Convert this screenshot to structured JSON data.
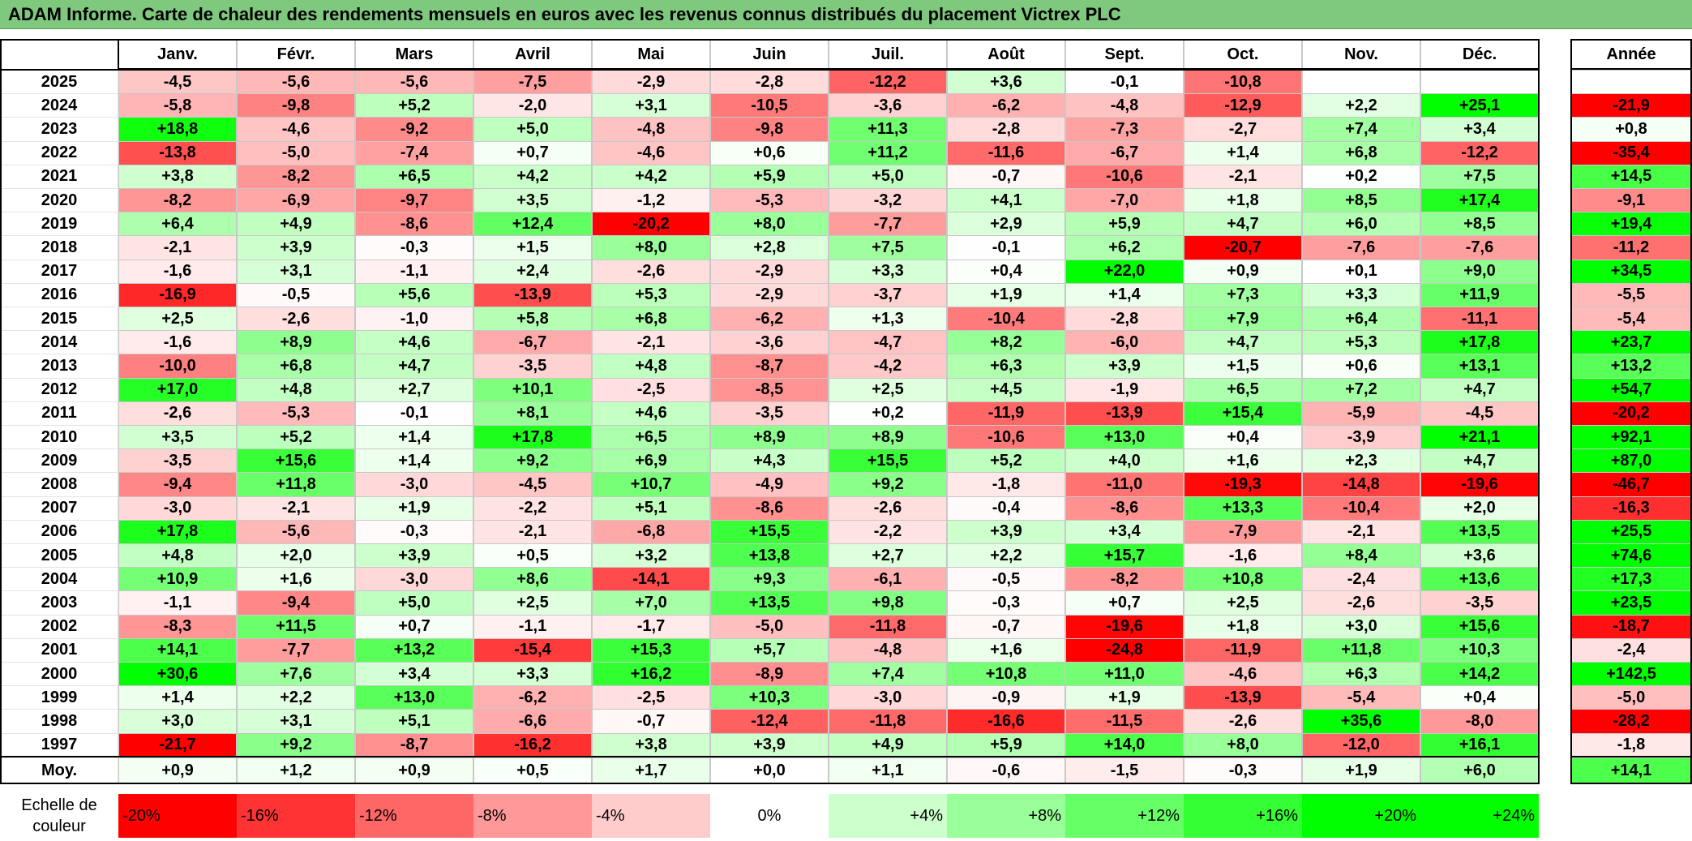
{
  "title": "ADAM Informe. Carte de chaleur des rendements mensuels en euros avec les revenus connus distribués du placement Victrex PLC",
  "chart_data": {
    "type": "heatmap",
    "title": "ADAM Informe. Carte de chaleur des rendements mensuels en euros avec les revenus connus distribués du placement Victrex PLC",
    "columns": [
      "Janv.",
      "Févr.",
      "Mars",
      "Avril",
      "Mai",
      "Juin",
      "Juil.",
      "Août",
      "Sept.",
      "Oct.",
      "Nov.",
      "Déc."
    ],
    "year_column_label": "Année",
    "average_row_label": "Moy.",
    "rows": [
      {
        "year": "2025",
        "values": [
          "-4,5",
          "-5,6",
          "-5,6",
          "-7,5",
          "-2,9",
          "-2,8",
          "-12,2",
          "+3,6",
          "-0,1",
          "-10,8",
          "",
          ""
        ],
        "annual": ""
      },
      {
        "year": "2024",
        "values": [
          "-5,8",
          "-9,8",
          "+5,2",
          "-2,0",
          "+3,1",
          "-10,5",
          "-3,6",
          "-6,2",
          "-4,8",
          "-12,9",
          "+2,2",
          "+25,1"
        ],
        "annual": "-21,9"
      },
      {
        "year": "2023",
        "values": [
          "+18,8",
          "-4,6",
          "-9,2",
          "+5,0",
          "-4,8",
          "-9,8",
          "+11,3",
          "-2,8",
          "-7,3",
          "-2,7",
          "+7,4",
          "+3,4"
        ],
        "annual": "+0,8"
      },
      {
        "year": "2022",
        "values": [
          "-13,8",
          "-5,0",
          "-7,4",
          "+0,7",
          "-4,6",
          "+0,6",
          "+11,2",
          "-11,6",
          "-6,7",
          "+1,4",
          "+6,8",
          "-12,2"
        ],
        "annual": "-35,4"
      },
      {
        "year": "2021",
        "values": [
          "+3,8",
          "-8,2",
          "+6,5",
          "+4,2",
          "+4,2",
          "+5,9",
          "+5,0",
          "-0,7",
          "-10,6",
          "-2,1",
          "+0,2",
          "+7,5"
        ],
        "annual": "+14,5"
      },
      {
        "year": "2020",
        "values": [
          "-8,2",
          "-6,9",
          "-9,7",
          "+3,5",
          "-1,2",
          "-5,3",
          "-3,2",
          "+4,1",
          "-7,0",
          "+1,8",
          "+8,5",
          "+17,4"
        ],
        "annual": "-9,1"
      },
      {
        "year": "2019",
        "values": [
          "+6,4",
          "+4,9",
          "-8,6",
          "+12,4",
          "-20,2",
          "+8,0",
          "-7,7",
          "+2,9",
          "+5,9",
          "+4,7",
          "+6,0",
          "+8,5"
        ],
        "annual": "+19,4"
      },
      {
        "year": "2018",
        "values": [
          "-2,1",
          "+3,9",
          "-0,3",
          "+1,5",
          "+8,0",
          "+2,8",
          "+7,5",
          "-0,1",
          "+6,2",
          "-20,7",
          "-7,6",
          "-7,6"
        ],
        "annual": "-11,2"
      },
      {
        "year": "2017",
        "values": [
          "-1,6",
          "+3,1",
          "-1,1",
          "+2,4",
          "-2,6",
          "-2,9",
          "+3,3",
          "+0,4",
          "+22,0",
          "+0,9",
          "+0,1",
          "+9,0"
        ],
        "annual": "+34,5"
      },
      {
        "year": "2016",
        "values": [
          "-16,9",
          "-0,5",
          "+5,6",
          "-13,9",
          "+5,3",
          "-2,9",
          "-3,7",
          "+1,9",
          "+1,4",
          "+7,3",
          "+3,3",
          "+11,9"
        ],
        "annual": "-5,5"
      },
      {
        "year": "2015",
        "values": [
          "+2,5",
          "-2,6",
          "-1,0",
          "+5,8",
          "+6,8",
          "-6,2",
          "+1,3",
          "-10,4",
          "-2,8",
          "+7,9",
          "+6,4",
          "-11,1"
        ],
        "annual": "-5,4"
      },
      {
        "year": "2014",
        "values": [
          "-1,6",
          "+8,9",
          "+4,6",
          "-6,7",
          "-2,1",
          "-3,6",
          "-4,7",
          "+8,2",
          "-6,0",
          "+4,7",
          "+5,3",
          "+17,8"
        ],
        "annual": "+23,7"
      },
      {
        "year": "2013",
        "values": [
          "-10,0",
          "+6,8",
          "+4,7",
          "-3,5",
          "+4,8",
          "-8,7",
          "-4,2",
          "+6,3",
          "+3,9",
          "+1,5",
          "+0,6",
          "+13,1"
        ],
        "annual": "+13,2"
      },
      {
        "year": "2012",
        "values": [
          "+17,0",
          "+4,8",
          "+2,7",
          "+10,1",
          "-2,5",
          "-8,5",
          "+2,5",
          "+4,5",
          "-1,9",
          "+6,5",
          "+7,2",
          "+4,7"
        ],
        "annual": "+54,7"
      },
      {
        "year": "2011",
        "values": [
          "-2,6",
          "-5,3",
          "-0,1",
          "+8,1",
          "+4,6",
          "-3,5",
          "+0,2",
          "-11,9",
          "-13,9",
          "+15,4",
          "-5,9",
          "-4,5"
        ],
        "annual": "-20,2"
      },
      {
        "year": "2010",
        "values": [
          "+3,5",
          "+5,2",
          "+1,4",
          "+17,8",
          "+6,5",
          "+8,9",
          "+8,9",
          "-10,6",
          "+13,0",
          "+0,4",
          "-3,9",
          "+21,1"
        ],
        "annual": "+92,1"
      },
      {
        "year": "2009",
        "values": [
          "-3,5",
          "+15,6",
          "+1,4",
          "+9,2",
          "+6,9",
          "+4,3",
          "+15,5",
          "+5,2",
          "+4,0",
          "+1,6",
          "+2,3",
          "+4,7"
        ],
        "annual": "+87,0"
      },
      {
        "year": "2008",
        "values": [
          "-9,4",
          "+11,8",
          "-3,0",
          "-4,5",
          "+10,7",
          "-4,9",
          "+9,2",
          "-1,8",
          "-11,0",
          "-19,3",
          "-14,8",
          "-19,6"
        ],
        "annual": "-46,7"
      },
      {
        "year": "2007",
        "values": [
          "-3,0",
          "-2,1",
          "+1,9",
          "-2,2",
          "+5,1",
          "-8,6",
          "-2,6",
          "-0,4",
          "-8,6",
          "+13,3",
          "-10,4",
          "+2,0"
        ],
        "annual": "-16,3"
      },
      {
        "year": "2006",
        "values": [
          "+17,8",
          "-5,6",
          "-0,3",
          "-2,1",
          "-6,8",
          "+15,5",
          "-2,2",
          "+3,9",
          "+3,4",
          "-7,9",
          "-2,1",
          "+13,5"
        ],
        "annual": "+25,5"
      },
      {
        "year": "2005",
        "values": [
          "+4,8",
          "+2,0",
          "+3,9",
          "+0,5",
          "+3,2",
          "+13,8",
          "+2,7",
          "+2,2",
          "+15,7",
          "-1,6",
          "+8,4",
          "+3,6"
        ],
        "annual": "+74,6"
      },
      {
        "year": "2004",
        "values": [
          "+10,9",
          "+1,6",
          "-3,0",
          "+8,6",
          "-14,1",
          "+9,3",
          "-6,1",
          "-0,5",
          "-8,2",
          "+10,8",
          "-2,4",
          "+13,6"
        ],
        "annual": "+17,3"
      },
      {
        "year": "2003",
        "values": [
          "-1,1",
          "-9,4",
          "+5,0",
          "+2,5",
          "+7,0",
          "+13,5",
          "+9,8",
          "-0,3",
          "+0,7",
          "+2,5",
          "-2,6",
          "-3,5"
        ],
        "annual": "+23,5"
      },
      {
        "year": "2002",
        "values": [
          "-8,3",
          "+11,5",
          "+0,7",
          "-1,1",
          "-1,7",
          "-5,0",
          "-11,8",
          "-0,7",
          "-19,6",
          "+1,8",
          "+3,0",
          "+15,6"
        ],
        "annual": "-18,7"
      },
      {
        "year": "2001",
        "values": [
          "+14,1",
          "-7,7",
          "+13,2",
          "-15,4",
          "+15,3",
          "+5,7",
          "-4,8",
          "+1,6",
          "-24,8",
          "-11,9",
          "+11,8",
          "+10,3"
        ],
        "annual": "-2,4"
      },
      {
        "year": "2000",
        "values": [
          "+30,6",
          "+7,6",
          "+3,4",
          "+3,3",
          "+16,2",
          "-8,9",
          "+7,4",
          "+10,8",
          "+11,0",
          "-4,6",
          "+6,3",
          "+14,2"
        ],
        "annual": "+142,5"
      },
      {
        "year": "1999",
        "values": [
          "+1,4",
          "+2,2",
          "+13,0",
          "-6,2",
          "-2,5",
          "+10,3",
          "-3,0",
          "-0,9",
          "+1,9",
          "-13,9",
          "-5,4",
          "+0,4"
        ],
        "annual": "-5,0"
      },
      {
        "year": "1998",
        "values": [
          "+3,0",
          "+3,1",
          "+5,1",
          "-6,6",
          "-0,7",
          "-12,4",
          "-11,8",
          "-16,6",
          "-11,5",
          "-2,6",
          "+35,6",
          "-8,0"
        ],
        "annual": "-28,2"
      },
      {
        "year": "1997",
        "values": [
          "-21,7",
          "+9,2",
          "-8,7",
          "-16,2",
          "+3,8",
          "+3,9",
          "+4,9",
          "+5,9",
          "+14,0",
          "+8,0",
          "-12,0",
          "+16,1"
        ],
        "annual": "-1,8"
      }
    ],
    "averages": [
      "+0,9",
      "+1,2",
      "+0,9",
      "+0,5",
      "+1,7",
      "+0,0",
      "+1,1",
      "-0,6",
      "-1,5",
      "-0,3",
      "+1,9",
      "+6,0"
    ],
    "average_annual": "+14,1",
    "scale_title": "Echelle de couleur",
    "scale": [
      {
        "label": "-20%",
        "value": -20,
        "align": "left",
        "color": "#ff0000"
      },
      {
        "label": "-16%",
        "value": -16,
        "align": "left",
        "color": "#ff3333"
      },
      {
        "label": "-12%",
        "value": -12,
        "align": "left",
        "color": "#ff6666"
      },
      {
        "label": "-8%",
        "value": -8,
        "align": "left",
        "color": "#ff9999"
      },
      {
        "label": "-4%",
        "value": -4,
        "align": "left",
        "color": "#ffcccc"
      },
      {
        "label": "0%",
        "value": 0,
        "align": "center",
        "color": "#ffffff"
      },
      {
        "label": "+4%",
        "value": 4,
        "align": "right",
        "color": "#ccffcc"
      },
      {
        "label": "+8%",
        "value": 8,
        "align": "right",
        "color": "#99ff99"
      },
      {
        "label": "+12%",
        "value": 12,
        "align": "right",
        "color": "#66ff66"
      },
      {
        "label": "+16%",
        "value": 16,
        "align": "right",
        "color": "#33ff33"
      },
      {
        "label": "+20%",
        "value": 20,
        "align": "right",
        "color": "#00ff00"
      },
      {
        "label": "+24%",
        "value": 24,
        "align": "right",
        "color": "#00ff00"
      }
    ]
  }
}
